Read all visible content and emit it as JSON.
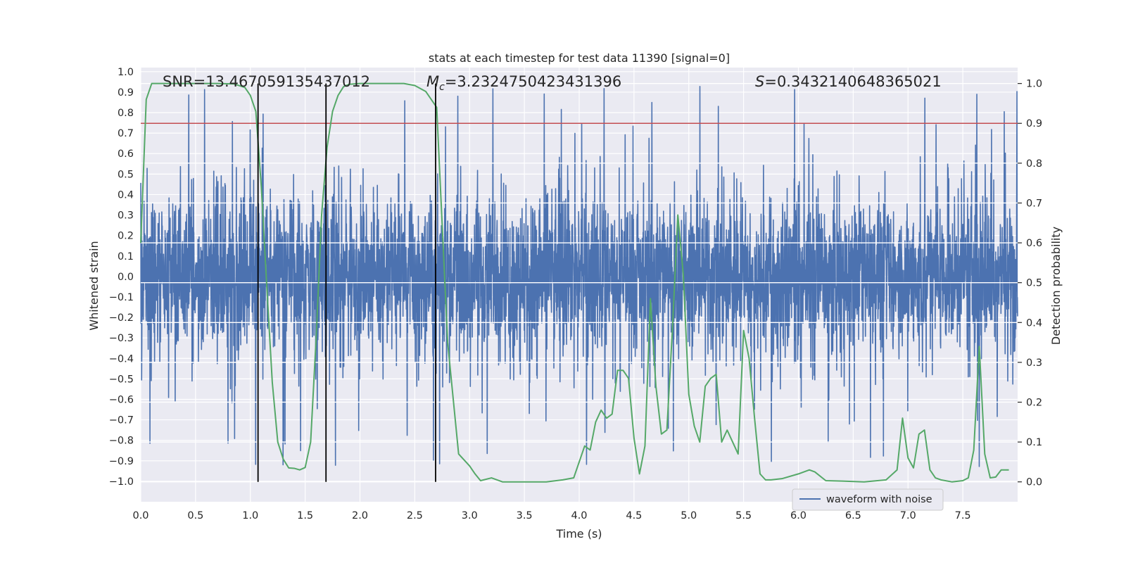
{
  "chart_data": {
    "type": "line",
    "title": "stats at each timestep for test data 11390 [signal=0]",
    "xlabel": "Time (s)",
    "ylabel_left": "Whitened strain",
    "ylabel_right": "Detection probability",
    "xlim": [
      0.0,
      8.0
    ],
    "ylim_left": [
      -1.1,
      1.02
    ],
    "ylim_right": [
      -0.05,
      1.04
    ],
    "grid": true,
    "x_ticks": [
      "0.0",
      "0.5",
      "1.0",
      "1.5",
      "2.0",
      "2.5",
      "3.0",
      "3.5",
      "4.0",
      "4.5",
      "5.0",
      "5.5",
      "6.0",
      "6.5",
      "7.0",
      "7.5"
    ],
    "y_ticks_left": [
      "1.0",
      "0.9",
      "0.8",
      "0.7",
      "0.6",
      "0.5",
      "0.4",
      "0.3",
      "0.2",
      "0.1",
      "0.0",
      "−0.1",
      "−0.2",
      "−0.3",
      "−0.4",
      "−0.5",
      "−0.6",
      "−0.7",
      "−0.8",
      "−0.9",
      "−1.0"
    ],
    "y_ticks_right": [
      "1.0",
      "0.9",
      "0.8",
      "0.7",
      "0.6",
      "0.5",
      "0.4",
      "0.3",
      "0.2",
      "0.1",
      "0.0"
    ],
    "annotations": {
      "snr": "SNR=13.467059135437012",
      "mc_symbol": "M",
      "mc_subscript": "c",
      "mc_value": "=3.2324750423431396",
      "s_symbol": "S",
      "s_value": "=0.3432140648365021"
    },
    "threshold": {
      "value": 0.9,
      "axis": "right",
      "color": "#c44e52"
    },
    "vertical_lines": [
      1.07,
      1.69,
      2.69
    ],
    "legend": {
      "label": "waveform with noise",
      "position": "lower-right",
      "color": "#4c72b0"
    },
    "series": [
      {
        "name": "waveform with noise",
        "axis": "left",
        "color": "#4c72b0",
        "sample_count": 4000,
        "approx_abs_envelope": 0.35,
        "approx_max": 0.93,
        "approx_min": -0.99
      },
      {
        "name": "detection probability",
        "axis": "right",
        "color": "#55a868",
        "x": [
          0.0,
          0.05,
          0.1,
          0.2,
          0.3,
          0.5,
          0.7,
          0.85,
          0.95,
          1.0,
          1.05,
          1.1,
          1.15,
          1.2,
          1.25,
          1.3,
          1.35,
          1.4,
          1.45,
          1.5,
          1.55,
          1.6,
          1.65,
          1.7,
          1.75,
          1.8,
          1.85,
          1.9,
          2.0,
          2.2,
          2.4,
          2.5,
          2.6,
          2.7,
          2.8,
          2.9,
          3.0,
          3.05,
          3.1,
          3.2,
          3.3,
          3.5,
          3.7,
          3.85,
          3.95,
          4.05,
          4.1,
          4.15,
          4.2,
          4.25,
          4.3,
          4.35,
          4.4,
          4.45,
          4.5,
          4.55,
          4.6,
          4.65,
          4.7,
          4.75,
          4.8,
          4.85,
          4.9,
          4.95,
          5.0,
          5.05,
          5.1,
          5.15,
          5.2,
          5.25,
          5.3,
          5.35,
          5.4,
          5.45,
          5.5,
          5.55,
          5.6,
          5.65,
          5.7,
          5.75,
          5.85,
          6.0,
          6.1,
          6.15,
          6.25,
          6.4,
          6.6,
          6.8,
          6.9,
          6.95,
          7.0,
          7.05,
          7.1,
          7.15,
          7.2,
          7.25,
          7.3,
          7.4,
          7.5,
          7.55,
          7.6,
          7.65,
          7.7,
          7.75,
          7.8,
          7.85,
          7.92
        ],
        "y": [
          0.6,
          0.96,
          1.0,
          1.0,
          1.0,
          1.0,
          1.0,
          0.999,
          0.99,
          0.97,
          0.93,
          0.74,
          0.49,
          0.25,
          0.1,
          0.057,
          0.035,
          0.034,
          0.03,
          0.036,
          0.1,
          0.36,
          0.67,
          0.84,
          0.93,
          0.97,
          0.992,
          0.998,
          1.0,
          1.0,
          1.0,
          0.995,
          0.98,
          0.94,
          0.35,
          0.07,
          0.04,
          0.02,
          0.003,
          0.01,
          0.0,
          0.0,
          0.0,
          0.005,
          0.01,
          0.09,
          0.08,
          0.15,
          0.18,
          0.16,
          0.17,
          0.28,
          0.28,
          0.26,
          0.11,
          0.02,
          0.09,
          0.46,
          0.24,
          0.12,
          0.13,
          0.38,
          0.67,
          0.52,
          0.22,
          0.14,
          0.1,
          0.24,
          0.26,
          0.27,
          0.1,
          0.13,
          0.1,
          0.07,
          0.38,
          0.31,
          0.16,
          0.02,
          0.005,
          0.005,
          0.008,
          0.02,
          0.03,
          0.025,
          0.003,
          0.002,
          0.0,
          0.005,
          0.03,
          0.16,
          0.06,
          0.035,
          0.12,
          0.13,
          0.03,
          0.01,
          0.005,
          0.0,
          0.003,
          0.01,
          0.08,
          0.34,
          0.07,
          0.01,
          0.012,
          0.03,
          0.03
        ]
      }
    ]
  }
}
